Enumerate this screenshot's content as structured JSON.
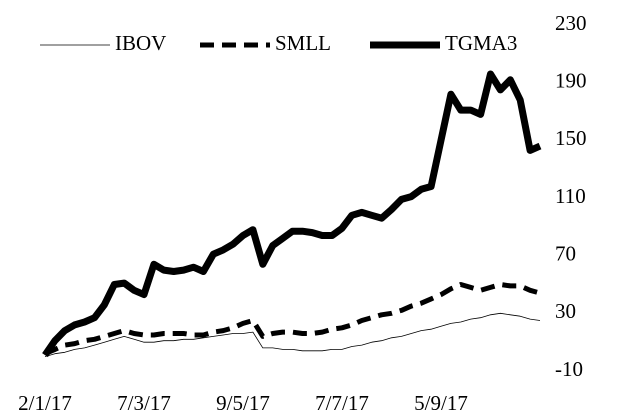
{
  "chart_data": {
    "type": "line",
    "categories": [
      "2/1/17",
      null,
      null,
      null,
      null,
      null,
      null,
      null,
      null,
      null,
      "7/3/17",
      null,
      null,
      null,
      null,
      null,
      null,
      null,
      null,
      null,
      "9/5/17",
      null,
      null,
      null,
      null,
      null,
      null,
      null,
      null,
      null,
      "7/7/17",
      null,
      null,
      null,
      null,
      null,
      null,
      null,
      null,
      null,
      "5/9/17",
      null,
      null,
      null,
      null,
      null,
      null,
      null,
      null,
      null,
      null
    ],
    "series": [
      {
        "name": "IBOV",
        "color": "#000000",
        "values": [
          0,
          2,
          3,
          5,
          6,
          8,
          10,
          12,
          14,
          12,
          10,
          10,
          11,
          11,
          12,
          12,
          13,
          14,
          15,
          16,
          16,
          17,
          6,
          6,
          5,
          5,
          4,
          4,
          4,
          5,
          5,
          7,
          8,
          10,
          11,
          13,
          14,
          16,
          18,
          19,
          21,
          23,
          24,
          26,
          27,
          29,
          30,
          29,
          28,
          26,
          25
        ]
      },
      {
        "name": "SMLL",
        "color": "#000000",
        "values": [
          2,
          5,
          8,
          9,
          11,
          12,
          14,
          16,
          18,
          16,
          15,
          15,
          16,
          16,
          16,
          15,
          15,
          17,
          18,
          20,
          23,
          25,
          14,
          16,
          17,
          17,
          16,
          16,
          17,
          19,
          20,
          22,
          25,
          27,
          29,
          30,
          32,
          35,
          37,
          40,
          43,
          47,
          50,
          48,
          46,
          48,
          50,
          49,
          49,
          46,
          44
        ]
      },
      {
        "name": "TGMA3",
        "color": "#000000",
        "values": [
          1,
          11,
          18,
          22,
          24,
          27,
          36,
          50,
          51,
          46,
          43,
          64,
          60,
          59,
          60,
          62,
          59,
          71,
          74,
          78,
          84,
          88,
          64,
          77,
          82,
          87,
          87,
          86,
          84,
          84,
          89,
          98,
          100,
          98,
          96,
          102,
          109,
          111,
          116,
          118,
          150,
          182,
          171,
          171,
          168,
          196,
          185,
          192,
          178,
          143,
          146
        ]
      }
    ],
    "ylim": [
      -10,
      230
    ],
    "yticks": [
      -10,
      30,
      70,
      110,
      150,
      190,
      230
    ],
    "grid": false,
    "legend": "top"
  }
}
